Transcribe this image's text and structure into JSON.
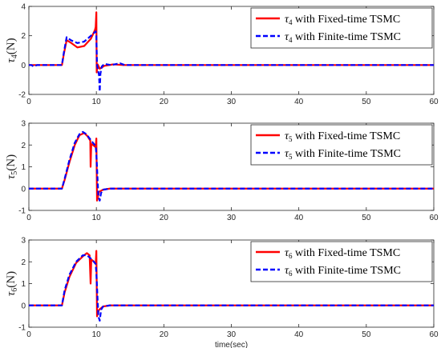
{
  "colors": {
    "fixed": "#ff0000",
    "finite": "#0000ff",
    "axis": "#262626",
    "background": "#ffffff"
  },
  "chart_data": [
    {
      "type": "line",
      "ylabel_symbol": "τ",
      "ylabel_sub": "4",
      "ylabel_unit": "(N)",
      "xlabel": "",
      "xlim": [
        0,
        60
      ],
      "ylim": [
        -2,
        4
      ],
      "x_ticks": [
        0,
        10,
        20,
        30,
        40,
        50,
        60
      ],
      "y_ticks": [
        -2,
        0,
        2,
        4
      ],
      "legend_position": "top-right",
      "series": [
        {
          "name_symbol": "τ",
          "name_sub": "4",
          "name_rest": " with Fixed-time TSMC",
          "style": "solid",
          "x": [
            0,
            4.9,
            5.2,
            5.6,
            6.3,
            7.2,
            8.2,
            9.2,
            9.8,
            9.9,
            10.0,
            10.05,
            10.2,
            10.5,
            11.2,
            12.5,
            14,
            60
          ],
          "y": [
            0,
            0,
            0.8,
            1.7,
            1.5,
            1.2,
            1.3,
            1.8,
            2.4,
            2.6,
            3.6,
            -0.5,
            0.05,
            -0.25,
            -0.05,
            0.05,
            0,
            0
          ]
        },
        {
          "name_symbol": "τ",
          "name_sub": "4",
          "name_rest": " with Finite-time TSMC",
          "style": "dashed",
          "x": [
            0,
            0.4,
            0.7,
            1.2,
            4.9,
            5.2,
            5.6,
            6.2,
            7.2,
            8.2,
            9.2,
            9.9,
            10.0,
            10.1,
            10.4,
            10.5,
            10.6,
            10.8,
            11.2,
            12.2,
            13.5,
            14.2,
            60
          ],
          "y": [
            0,
            0,
            -0.1,
            0,
            0,
            0.9,
            1.9,
            1.7,
            1.5,
            1.6,
            2.0,
            2.3,
            2.0,
            0,
            -0.7,
            -1.8,
            -0.6,
            -0.1,
            0.08,
            0,
            0.12,
            0,
            0
          ]
        }
      ]
    },
    {
      "type": "line",
      "ylabel_symbol": "τ",
      "ylabel_sub": "5",
      "ylabel_unit": "(N)",
      "xlabel": "",
      "xlim": [
        0,
        60
      ],
      "ylim": [
        -1,
        3
      ],
      "x_ticks": [
        0,
        10,
        20,
        30,
        40,
        50,
        60
      ],
      "y_ticks": [
        -1,
        0,
        1,
        2,
        3
      ],
      "legend_position": "top-right",
      "series": [
        {
          "name_symbol": "τ",
          "name_sub": "5",
          "name_rest": " with Fixed-time TSMC",
          "style": "solid",
          "x": [
            0,
            4.9,
            5.3,
            6.0,
            6.8,
            7.5,
            8.2,
            8.7,
            9.1,
            9.15,
            9.25,
            9.5,
            9.9,
            10.0,
            10.1,
            10.4,
            11.0,
            12.0,
            60
          ],
          "y": [
            0,
            0,
            0.4,
            1.2,
            2.0,
            2.45,
            2.55,
            2.4,
            2.2,
            1.0,
            2.05,
            2.0,
            1.9,
            2.3,
            -0.55,
            -0.15,
            -0.05,
            0,
            0
          ]
        },
        {
          "name_symbol": "τ",
          "name_sub": "5",
          "name_rest": " with Finite-time TSMC",
          "style": "dashed",
          "x": [
            0,
            4.9,
            5.3,
            6.0,
            6.8,
            7.5,
            8.0,
            8.5,
            9.0,
            9.5,
            9.9,
            10.0,
            10.3,
            10.5,
            10.7,
            11.0,
            12.0,
            60
          ],
          "y": [
            0,
            0,
            0.45,
            1.3,
            2.1,
            2.5,
            2.6,
            2.5,
            2.3,
            2.1,
            1.95,
            1.6,
            -0.35,
            -0.55,
            -0.2,
            -0.05,
            0,
            0
          ]
        }
      ]
    },
    {
      "type": "line",
      "ylabel_symbol": "τ",
      "ylabel_sub": "6",
      "ylabel_unit": "(N)",
      "xlabel": "time(sec)",
      "xlim": [
        0,
        60
      ],
      "ylim": [
        -1,
        3
      ],
      "x_ticks": [
        0,
        10,
        20,
        30,
        40,
        50,
        60
      ],
      "y_ticks": [
        -1,
        0,
        1,
        2,
        3
      ],
      "legend_position": "top-right",
      "series": [
        {
          "name_symbol": "τ",
          "name_sub": "6",
          "name_rest": " with Fixed-time TSMC",
          "style": "solid",
          "x": [
            0,
            4.9,
            5.3,
            6.0,
            7.0,
            8.0,
            8.6,
            9.0,
            9.15,
            9.25,
            9.5,
            9.9,
            10.0,
            10.1,
            10.4,
            11.0,
            12.0,
            60
          ],
          "y": [
            0,
            0,
            0.6,
            1.3,
            1.95,
            2.25,
            2.4,
            2.3,
            1.0,
            2.1,
            2.05,
            1.9,
            2.5,
            -0.5,
            -0.2,
            -0.05,
            0,
            0
          ]
        },
        {
          "name_symbol": "τ",
          "name_sub": "6",
          "name_rest": " with Finite-time TSMC",
          "style": "dashed",
          "x": [
            0,
            4.9,
            5.3,
            6.0,
            7.0,
            8.0,
            8.6,
            9.0,
            9.5,
            9.9,
            10.0,
            10.3,
            10.5,
            10.7,
            11.0,
            12.0,
            60
          ],
          "y": [
            0,
            0,
            0.7,
            1.4,
            2.0,
            2.3,
            2.3,
            2.2,
            2.05,
            1.9,
            1.5,
            -0.5,
            -0.7,
            -0.2,
            -0.05,
            0,
            0
          ]
        }
      ]
    }
  ]
}
